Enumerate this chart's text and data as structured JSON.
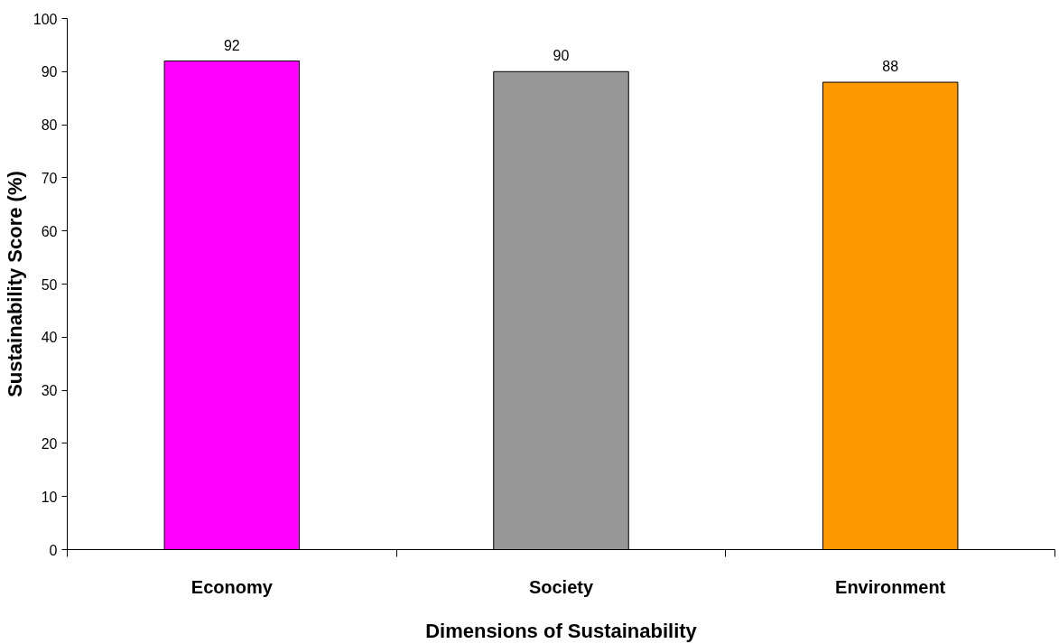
{
  "chart_data": {
    "type": "bar",
    "xlabel": "Dimensions of Sustainability",
    "ylabel": "Sustainability Score (%)",
    "categories": [
      "Economy",
      "Society",
      "Environment"
    ],
    "values": [
      92,
      90,
      88
    ],
    "colors": [
      "#ff00ff",
      "#969696",
      "#ff9900"
    ],
    "ylim": [
      0,
      100
    ],
    "yticks": [
      0,
      10,
      20,
      30,
      40,
      50,
      60,
      70,
      80,
      90,
      100
    ],
    "data_labels": true,
    "grid": false
  }
}
